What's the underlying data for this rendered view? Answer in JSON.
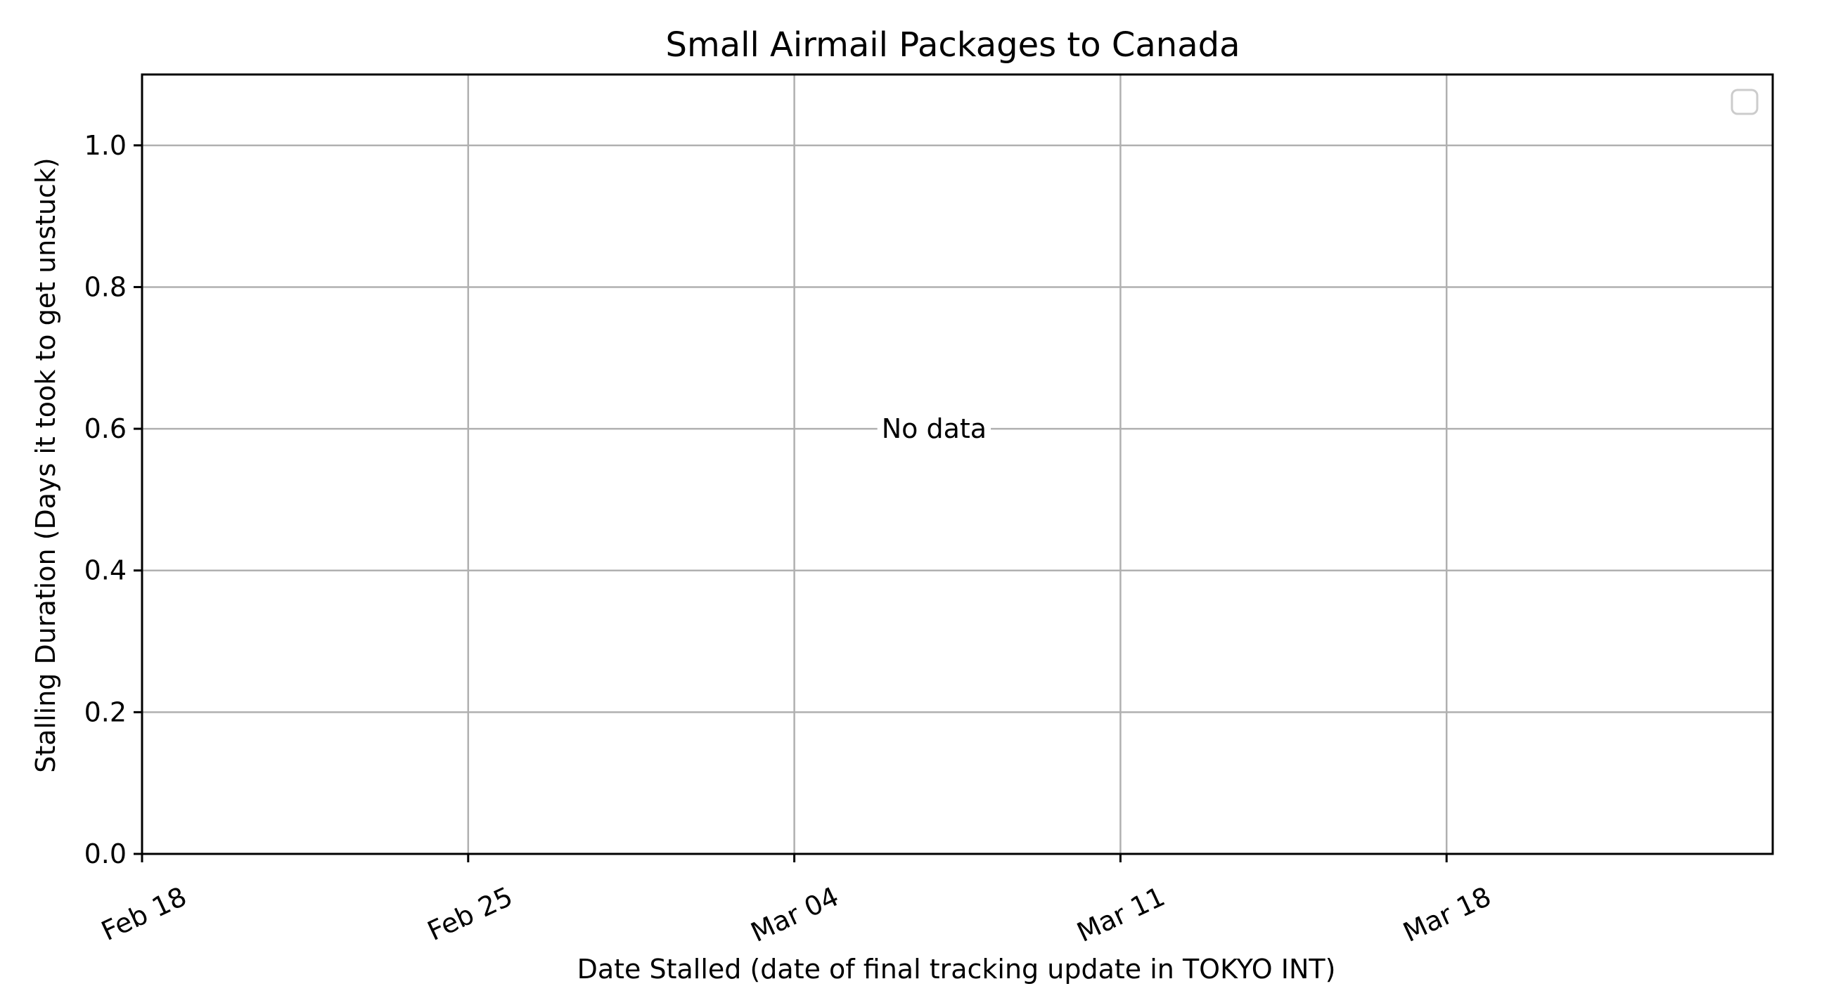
{
  "chart_data": {
    "type": "scatter",
    "title": "Small Airmail Packages to Canada",
    "xlabel": "Date Stalled (date of final tracking update in TOKYO INT)",
    "ylabel": "Stalling Duration (Days it took to get unstuck)",
    "x_axis_type": "date",
    "xlim": [
      "2023-02-18",
      "2023-03-25"
    ],
    "x_ticks": [
      {
        "value": "2023-02-18",
        "label": "Feb 18"
      },
      {
        "value": "2023-02-25",
        "label": "Feb 25"
      },
      {
        "value": "2023-03-04",
        "label": "Mar 04"
      },
      {
        "value": "2023-03-11",
        "label": "Mar 11"
      },
      {
        "value": "2023-03-18",
        "label": "Mar 18"
      }
    ],
    "ylim": [
      0,
      1.1
    ],
    "y_ticks": [
      {
        "value": 0.0,
        "label": "0.0"
      },
      {
        "value": 0.2,
        "label": "0.2"
      },
      {
        "value": 0.4,
        "label": "0.4"
      },
      {
        "value": 0.6,
        "label": "0.6"
      },
      {
        "value": 0.8,
        "label": "0.8"
      },
      {
        "value": 1.0,
        "label": "1.0"
      }
    ],
    "grid": true,
    "legend": {
      "placement": "top-right",
      "entries": []
    },
    "series": [],
    "annotation": {
      "text": "No data",
      "x": "2023-03-07",
      "y": 0.6
    },
    "colors": {
      "grid": "#b0b0b0",
      "axes": "#000000",
      "legend_border": "#cccccc"
    }
  }
}
